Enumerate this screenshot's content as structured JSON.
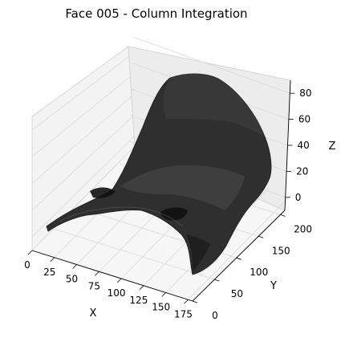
{
  "chart_data": {
    "type": "surface3d",
    "title": "Face 005 - Column Integration",
    "xlabel": "X",
    "ylabel": "Y",
    "zlabel": "Z",
    "x_ticks": [
      "0",
      "25",
      "50",
      "75",
      "100",
      "125",
      "150",
      "175"
    ],
    "y_ticks": [
      "0",
      "50",
      "100",
      "150",
      "200"
    ],
    "z_ticks": [
      "0",
      "20",
      "40",
      "60",
      "80"
    ],
    "xlim": [
      0,
      180
    ],
    "ylim": [
      0,
      210
    ],
    "zlim": [
      -10,
      90
    ],
    "grid": true,
    "colormap": "gray",
    "surface_color": "#2f2f2f",
    "pane_color": "#f2f2f2",
    "grid_color": "#d9d9d9"
  }
}
